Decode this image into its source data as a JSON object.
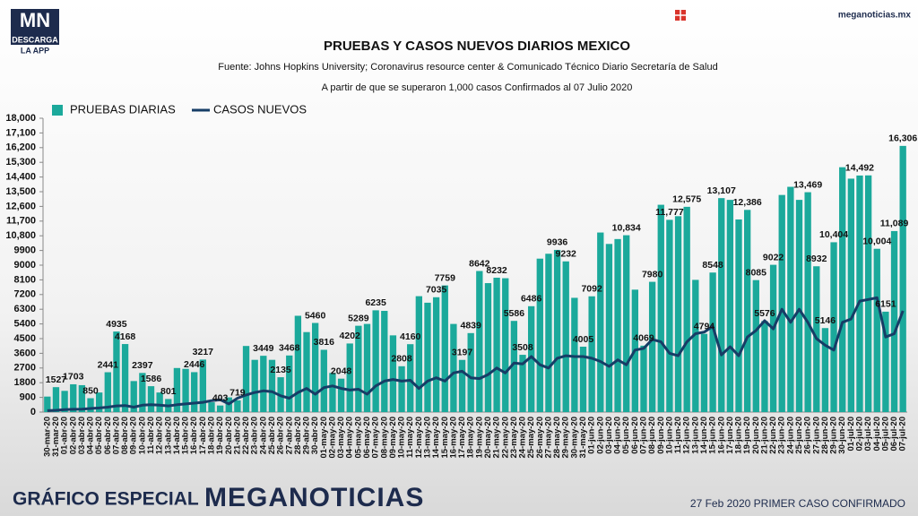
{
  "header": {
    "logo": "MN",
    "logo_sub": "DESCARGA",
    "logo_app": "LA APP",
    "site": "meganoticias.mx"
  },
  "footer": {
    "left": "GRÁFICO ESPECIAL",
    "brand": "MEGANOTICIAS",
    "right": "27 Feb 2020 PRIMER CASO CONFIRMADO"
  },
  "chart_data": {
    "type": "bar_line",
    "title": "PRUEBAS Y CASOS NUEVOS DIARIOS MEXICO",
    "source": "Fuente: Johns Hopkins University; Coronavirus resource center & Comunicado Técnico Diario Secretaría de Salud",
    "subtitle": "A partir de que se superaron 1,000 casos Confirmados al 07 Julio 2020",
    "legend": "upper left",
    "grid": false,
    "categories": [
      "30-mar-20",
      "31-mar-20",
      "01-abr-20",
      "02-abr-20",
      "03-abr-20",
      "04-abr-20",
      "05-abr-20",
      "06-abr-20",
      "07-abr-20",
      "08-abr-20",
      "09-abr-20",
      "10-abr-20",
      "11-abr-20",
      "12-abr-20",
      "13-abr-20",
      "14-abr-20",
      "15-abr-20",
      "16-abr-20",
      "17-abr-20",
      "18-abr-20",
      "19-abr-20",
      "20-abr-20",
      "21-abr-20",
      "22-abr-20",
      "23-abr-20",
      "24-abr-20",
      "25-abr-20",
      "26-abr-20",
      "27-abr-20",
      "28-abr-20",
      "29-abr-20",
      "30-abr-20",
      "01-may-20",
      "02-may-20",
      "03-may-20",
      "04-may-20",
      "05-may-20",
      "06-may-20",
      "07-may-20",
      "08-may-20",
      "09-may-20",
      "10-may-20",
      "11-may-20",
      "12-may-20",
      "13-may-20",
      "14-may-20",
      "15-may-20",
      "16-may-20",
      "17-may-20",
      "18-may-20",
      "19-may-20",
      "20-may-20",
      "21-may-20",
      "22-may-20",
      "23-may-20",
      "24-may-20",
      "25-may-20",
      "26-may-20",
      "27-may-20",
      "28-may-20",
      "29-may-20",
      "30-may-20",
      "31-may-20",
      "01-jun-20",
      "02-jun-20",
      "03-jun-20",
      "04-jun-20",
      "05-jun-20",
      "06-jun-20",
      "07-jun-20",
      "08-jun-20",
      "09-jun-20",
      "10-jun-20",
      "11-jun-20",
      "12-jun-20",
      "13-jun-20",
      "14-jun-20",
      "15-jun-20",
      "16-jun-20",
      "17-jun-20",
      "18-jun-20",
      "19-jun-20",
      "20-jun-20",
      "21-jun-20",
      "22-jun-20",
      "23-jun-20",
      "24-jun-20",
      "25-jun-20",
      "26-jun-20",
      "27-jun-20",
      "28-jun-20",
      "29-jun-20",
      "30-jun-20",
      "01-jul-20",
      "02-jul-20",
      "03-jul-20",
      "04-jul-20",
      "05-jul-20",
      "06-jul-20",
      "07-jul-20"
    ],
    "series": [
      {
        "name": "PRUEBAS DIARIAS",
        "kind": "bar",
        "color": "#1ba99b",
        "values": [
          950,
          1527,
          1300,
          1703,
          1650,
          850,
          1200,
          2441,
          4935,
          4168,
          1900,
          2397,
          1586,
          1200,
          801,
          2700,
          2650,
          2446,
          3217,
          600,
          403,
          900,
          719,
          4050,
          3200,
          3449,
          3200,
          2135,
          3468,
          5900,
          4900,
          5460,
          3816,
          2400,
          2048,
          4202,
          5289,
          5400,
          6235,
          6200,
          4700,
          2808,
          4160,
          7100,
          6700,
          7035,
          7759,
          5400,
          3197,
          4839,
          8642,
          7900,
          8232,
          8200,
          5586,
          3508,
          6486,
          9400,
          9700,
          9936,
          9232,
          7000,
          4005,
          7092,
          11000,
          10300,
          10600,
          10834,
          7500,
          4069,
          7980,
          12700,
          11777,
          12000,
          12575,
          8100,
          4794,
          8548,
          13107,
          13000,
          11800,
          12386,
          8085,
          5576,
          9022,
          13300,
          13800,
          13000,
          13469,
          8932,
          5146,
          10404,
          15000,
          14300,
          14492,
          14500,
          10004,
          6151,
          11089,
          16306
        ],
        "value_labels": [
          null,
          "1527",
          null,
          "1703",
          null,
          "850",
          null,
          "2441",
          "4935",
          "4168",
          null,
          "2397",
          "1586",
          null,
          "801",
          null,
          null,
          "2446",
          "3217",
          null,
          "403",
          null,
          "719",
          null,
          null,
          "3449",
          null,
          "2135",
          "3468",
          null,
          null,
          "5460",
          "3816",
          null,
          "2048",
          "4202",
          "5289",
          null,
          "6235",
          null,
          null,
          "2808",
          "4160",
          null,
          null,
          "7035",
          "7759",
          null,
          "3197",
          "4839",
          "8642",
          null,
          "8232",
          null,
          "5586",
          "3508",
          "6486",
          null,
          null,
          "9936",
          "9232",
          null,
          "4005",
          "7092",
          null,
          null,
          null,
          "10,834",
          null,
          "4069",
          "7980",
          null,
          "11,777",
          null,
          "12,575",
          null,
          "4794",
          "8548",
          "13,107",
          null,
          null,
          "12,386",
          "8085",
          "5576",
          "9022",
          null,
          null,
          null,
          "13,469",
          "8932",
          "5146",
          "10,404",
          null,
          null,
          "14,492",
          null,
          "10,004",
          "6151",
          "11,089",
          "16,306"
        ]
      },
      {
        "name": "CASOS NUEVOS",
        "kind": "line",
        "color": "#163d66",
        "values": [
          90,
          110,
          150,
          170,
          180,
          220,
          250,
          300,
          380,
          400,
          300,
          420,
          450,
          430,
          380,
          450,
          500,
          550,
          600,
          700,
          760,
          500,
          850,
          1050,
          1200,
          1300,
          1250,
          1000,
          850,
          1200,
          1450,
          1100,
          1500,
          1600,
          1450,
          1350,
          1400,
          1100,
          1600,
          1900,
          2000,
          1900,
          1950,
          1450,
          1900,
          2100,
          1900,
          2400,
          2500,
          2100,
          2050,
          2300,
          2700,
          2400,
          3000,
          2950,
          3400,
          2900,
          2700,
          3300,
          3450,
          3400,
          3400,
          3300,
          3100,
          2800,
          3200,
          2900,
          3800,
          3900,
          4450,
          4300,
          3600,
          3450,
          4300,
          4800,
          4900,
          5250,
          3500,
          4000,
          3450,
          4600,
          5000,
          5600,
          5100,
          6300,
          5500,
          6300,
          5500,
          4500,
          4100,
          3800,
          5500,
          5700,
          6800,
          6900,
          7000,
          4600,
          4800,
          6200
        ]
      }
    ],
    "ylim": [
      0,
      18000
    ],
    "yticks": [
      0,
      900,
      1800,
      2700,
      3600,
      4500,
      5400,
      6300,
      7200,
      8100,
      9000,
      9900,
      {
        "value": 10800,
        "label": "10,800"
      },
      {
        "value": 11700,
        "label": "11,700"
      },
      {
        "value": 12600,
        "label": "12,600"
      },
      {
        "value": 13500,
        "label": "13,500"
      },
      {
        "value": 14400,
        "label": "14,400"
      },
      {
        "value": 15300,
        "label": "15,300"
      },
      {
        "value": 16200,
        "label": "16,200"
      },
      {
        "value": 17100,
        "label": "17,100"
      },
      {
        "value": 18000,
        "label": "18,000"
      }
    ]
  }
}
